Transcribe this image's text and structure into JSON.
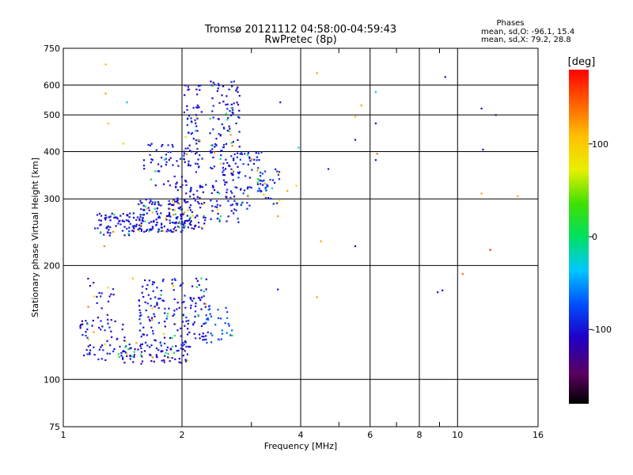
{
  "title_line1": "Tromsø 20121112 04:58:00-04:59:43",
  "title_line2": "RwPretec (8p)",
  "info": {
    "heading": "Phases",
    "line1": "mean, sd,O: -96.1, 15.4",
    "line2": "mean, sd,X:  79.2, 28.8"
  },
  "colorbar": {
    "unit_label": "[deg]",
    "min": -180,
    "max": 180,
    "ticks": [
      {
        "value": 100,
        "label": "100"
      },
      {
        "value": 0,
        "label": "0"
      },
      {
        "value": -100,
        "label": "-100"
      }
    ]
  },
  "chart_data": {
    "type": "scatter",
    "xlabel": "Frequency [MHz]",
    "ylabel": "Stationary phase Virtual Height [km]",
    "xscale": "log",
    "yscale": "log",
    "xlim": [
      1,
      16
    ],
    "ylim": [
      75,
      750
    ],
    "grid": true,
    "x_ticks": [
      {
        "value": 1,
        "label": "1"
      },
      {
        "value": 2,
        "label": "2"
      },
      {
        "value": 4,
        "label": "4"
      },
      {
        "value": 6,
        "label": "6"
      },
      {
        "value": 8,
        "label": "8"
      },
      {
        "value": 10,
        "label": "10"
      },
      {
        "value": 16,
        "label": "16"
      }
    ],
    "x_minor": [
      3,
      5,
      7,
      9
    ],
    "y_ticks": [
      {
        "value": 75,
        "label": "75"
      },
      {
        "value": 100,
        "label": "100"
      },
      {
        "value": 200,
        "label": "200"
      },
      {
        "value": 300,
        "label": "300"
      },
      {
        "value": 400,
        "label": "400"
      },
      {
        "value": 500,
        "label": "500"
      },
      {
        "value": 600,
        "label": "600"
      },
      {
        "value": 750,
        "label": "750"
      }
    ],
    "clusters": [
      {
        "f": [
          1.2,
          1.6
        ],
        "h": [
          240,
          275
        ],
        "phase": -100,
        "n": 90
      },
      {
        "f": [
          1.55,
          2.05
        ],
        "h": [
          245,
          300
        ],
        "phase": -100,
        "n": 140
      },
      {
        "f": [
          1.9,
          2.3
        ],
        "h": [
          250,
          330
        ],
        "phase": -100,
        "n": 90
      },
      {
        "f": [
          2.0,
          2.25
        ],
        "h": [
          350,
          600
        ],
        "phase": -100,
        "n": 70
      },
      {
        "f": [
          2.35,
          2.8
        ],
        "h": [
          260,
          620
        ],
        "phase": -100,
        "n": 170
      },
      {
        "f": [
          2.7,
          3.2
        ],
        "h": [
          280,
          400
        ],
        "phase": -95,
        "n": 60
      },
      {
        "f": [
          3.1,
          3.55
        ],
        "h": [
          290,
          360
        ],
        "phase": -90,
        "n": 40
      },
      {
        "f": [
          1.6,
          2.05
        ],
        "h": [
          320,
          420
        ],
        "phase": -100,
        "n": 50
      },
      {
        "f": [
          1.1,
          1.45
        ],
        "h": [
          112,
          145
        ],
        "phase": -100,
        "n": 70
      },
      {
        "f": [
          1.4,
          2.1
        ],
        "h": [
          110,
          125
        ],
        "phase": -105,
        "n": 90
      },
      {
        "f": [
          1.55,
          2.35
        ],
        "h": [
          125,
          185
        ],
        "phase": -100,
        "n": 170
      },
      {
        "f": [
          2.3,
          2.7
        ],
        "h": [
          125,
          160
        ],
        "phase": -70,
        "n": 30
      },
      {
        "f": [
          1.15,
          1.35
        ],
        "h": [
          140,
          190
        ],
        "phase": -100,
        "n": 20
      }
    ],
    "points": [
      {
        "f": 1.28,
        "h": 680,
        "phase": 110
      },
      {
        "f": 1.28,
        "h": 570,
        "phase": 120
      },
      {
        "f": 1.3,
        "h": 475,
        "phase": 110
      },
      {
        "f": 1.42,
        "h": 420,
        "phase": 60
      },
      {
        "f": 1.45,
        "h": 540,
        "phase": -40
      },
      {
        "f": 1.27,
        "h": 225,
        "phase": 130
      },
      {
        "f": 1.5,
        "h": 185,
        "phase": 110
      },
      {
        "f": 3.55,
        "h": 540,
        "phase": -100
      },
      {
        "f": 3.95,
        "h": 410,
        "phase": -30
      },
      {
        "f": 3.7,
        "h": 315,
        "phase": 120
      },
      {
        "f": 3.9,
        "h": 325,
        "phase": 100
      },
      {
        "f": 3.5,
        "h": 270,
        "phase": 120
      },
      {
        "f": 4.4,
        "h": 645,
        "phase": 120
      },
      {
        "f": 4.7,
        "h": 360,
        "phase": -100
      },
      {
        "f": 4.5,
        "h": 232,
        "phase": 120
      },
      {
        "f": 5.5,
        "h": 225,
        "phase": -110
      },
      {
        "f": 5.5,
        "h": 495,
        "phase": 110
      },
      {
        "f": 5.7,
        "h": 530,
        "phase": 120
      },
      {
        "f": 5.5,
        "h": 430,
        "phase": -100
      },
      {
        "f": 6.2,
        "h": 575,
        "phase": -40
      },
      {
        "f": 6.2,
        "h": 475,
        "phase": -100
      },
      {
        "f": 6.25,
        "h": 395,
        "phase": 140
      },
      {
        "f": 6.2,
        "h": 380,
        "phase": -100
      },
      {
        "f": 4.4,
        "h": 165,
        "phase": 120
      },
      {
        "f": 3.5,
        "h": 173,
        "phase": -100
      },
      {
        "f": 9.3,
        "h": 630,
        "phase": -100
      },
      {
        "f": 8.9,
        "h": 170,
        "phase": -100
      },
      {
        "f": 9.15,
        "h": 172,
        "phase": -100
      },
      {
        "f": 10.3,
        "h": 190,
        "phase": 140
      },
      {
        "f": 11.5,
        "h": 520,
        "phase": -110
      },
      {
        "f": 11.6,
        "h": 405,
        "phase": -110
      },
      {
        "f": 11.5,
        "h": 310,
        "phase": 120
      },
      {
        "f": 12.1,
        "h": 220,
        "phase": 165
      },
      {
        "f": 12.5,
        "h": 500,
        "phase": -140
      },
      {
        "f": 14.2,
        "h": 305,
        "phase": 120
      }
    ]
  }
}
